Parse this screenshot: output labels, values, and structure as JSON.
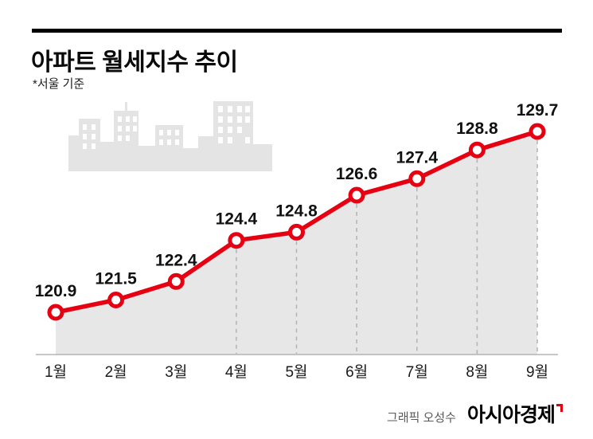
{
  "header": {
    "title": "아파트 월세지수 추이",
    "subtitle": "*서울 기준"
  },
  "chart_data": {
    "type": "line",
    "title": "아파트 월세지수 추이",
    "note": "*서울 기준",
    "categories": [
      "1월",
      "2월",
      "3월",
      "4월",
      "5월",
      "6월",
      "7월",
      "8월",
      "9월"
    ],
    "values": [
      120.9,
      121.5,
      122.4,
      124.4,
      124.8,
      126.6,
      127.4,
      128.8,
      129.7
    ],
    "ylim": [
      120.9,
      129.7
    ],
    "grid": false,
    "legend": false,
    "area_fill": true,
    "dashed_guide_indices": [
      3,
      4,
      5,
      6,
      7,
      8
    ],
    "colors": {
      "line": "#e60012",
      "marker_fill": "#ffffff",
      "area": "#e7e7e7",
      "guide": "#b3b3b3",
      "axis": "#a6a6a6",
      "value_text": "#111111",
      "tick_text": "#1b1b1b"
    }
  },
  "footer": {
    "credit": "그래픽 오성수",
    "brand": "아시아경제"
  }
}
